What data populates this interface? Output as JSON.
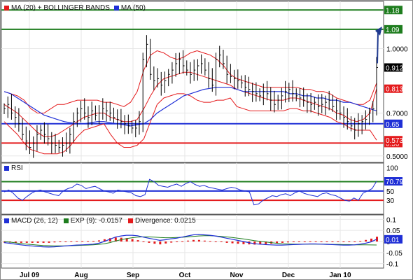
{
  "chart_data": {
    "type": "stock-chart",
    "colors": {
      "price": "#000000",
      "ma20_bands": "#e41a1c",
      "ma50": "#1f2fd6",
      "resistance": "#1e7d1e",
      "support_blue": "#1f2fd6",
      "support_red": "#e41a1c",
      "rsi": "#1f2fd6",
      "macd": "#1f2fd6",
      "signal": "#1e7d1e",
      "divergence": "#e41a1c",
      "arrow": "#1f3a8f"
    },
    "x_labels": [
      "Jul 09",
      "Aug",
      "Sep",
      "Oct",
      "Nov",
      "Dec",
      "Jan 10"
    ],
    "price_panel": {
      "legend": [
        {
          "label": "MA (20) + BOLLINGER BANDS",
          "color": "#e41a1c"
        },
        {
          "label": "MA (50)",
          "color": "#1f2fd6"
        }
      ],
      "yticks": [
        "1.0000",
        "0.7000",
        "0.5000"
      ],
      "ytick_values": [
        1.0,
        0.7,
        0.5
      ],
      "ylim": [
        0.47,
        1.22
      ],
      "levels": [
        {
          "label": "1.18",
          "value": 1.18,
          "color": "#1e7d1e"
        },
        {
          "label": "1.09",
          "value": 1.09,
          "color": "#1e7d1e"
        },
        {
          "label": "0.65",
          "value": 0.65,
          "color": "#1f2fd6"
        },
        {
          "label": "0.56",
          "value": 0.56,
          "color": "#e41a1c"
        }
      ],
      "tags": [
        {
          "label": "0.912",
          "value": 0.912,
          "color": "#000000"
        },
        {
          "label": "0.8133",
          "value": 0.8133,
          "color": "#e41a1c"
        },
        {
          "label": "0.5736",
          "value": 0.5736,
          "color": "#e41a1c"
        }
      ],
      "close": [
        0.72,
        0.74,
        0.7,
        0.68,
        0.65,
        0.6,
        0.57,
        0.54,
        0.56,
        0.6,
        0.62,
        0.6,
        0.58,
        0.56,
        0.55,
        0.54,
        0.55,
        0.56,
        0.6,
        0.66,
        0.7,
        0.72,
        0.7,
        0.68,
        0.71,
        0.69,
        0.7,
        0.72,
        0.71,
        0.7,
        0.68,
        0.67,
        0.66,
        0.65,
        0.64,
        0.63,
        0.63,
        0.66,
        0.95,
        1.02,
        0.88,
        0.85,
        0.86,
        0.83,
        0.85,
        0.88,
        0.9,
        0.93,
        0.95,
        0.92,
        0.9,
        0.88,
        0.9,
        0.92,
        0.93,
        0.9,
        0.86,
        0.83,
        0.95,
        0.97,
        0.93,
        0.88,
        0.87,
        0.86,
        0.85,
        0.84,
        0.82,
        0.81,
        0.8,
        0.79,
        0.78,
        0.8,
        0.79,
        0.76,
        0.74,
        0.76,
        0.78,
        0.8,
        0.81,
        0.79,
        0.78,
        0.77,
        0.76,
        0.75,
        0.74,
        0.75,
        0.73,
        0.74,
        0.75,
        0.76,
        0.73,
        0.71,
        0.7,
        0.68,
        0.66,
        0.64,
        0.62,
        0.65,
        0.66,
        0.67,
        0.7,
        0.72,
        0.912
      ],
      "ma20": [
        0.74,
        0.72,
        0.7,
        0.67,
        0.64,
        0.61,
        0.59,
        0.59,
        0.6,
        0.62,
        0.64,
        0.66,
        0.68,
        0.69,
        0.7,
        0.7,
        0.68,
        0.67,
        0.66,
        0.66,
        0.67,
        0.72,
        0.78,
        0.83,
        0.86,
        0.87,
        0.88,
        0.89,
        0.89,
        0.88,
        0.87,
        0.86,
        0.85,
        0.84,
        0.83,
        0.81,
        0.8,
        0.79,
        0.78,
        0.77,
        0.76,
        0.76,
        0.76,
        0.77,
        0.77,
        0.76,
        0.75,
        0.74,
        0.73,
        0.72,
        0.7,
        0.69,
        0.67,
        0.66,
        0.67,
        0.7,
        0.8133
      ],
      "bb_upper": [
        0.8,
        0.79,
        0.78,
        0.76,
        0.72,
        0.7,
        0.7,
        0.72,
        0.74,
        0.74,
        0.75,
        0.76,
        0.76,
        0.76,
        0.76,
        0.75,
        0.75,
        0.74,
        0.73,
        0.75,
        0.8,
        0.9,
        0.97,
        0.99,
        0.98,
        0.96,
        0.95,
        0.96,
        0.98,
        0.99,
        0.98,
        0.97,
        0.95,
        0.92,
        0.88,
        0.86,
        0.85,
        0.84,
        0.83,
        0.82,
        0.82,
        0.82,
        0.82,
        0.82,
        0.82,
        0.81,
        0.81,
        0.8,
        0.8,
        0.79,
        0.77,
        0.76,
        0.75,
        0.74,
        0.74,
        0.76,
        0.84
      ],
      "bb_lower": [
        0.66,
        0.63,
        0.6,
        0.56,
        0.53,
        0.52,
        0.51,
        0.51,
        0.51,
        0.52,
        0.55,
        0.59,
        0.62,
        0.63,
        0.64,
        0.65,
        0.6,
        0.56,
        0.54,
        0.54,
        0.55,
        0.58,
        0.66,
        0.74,
        0.77,
        0.78,
        0.79,
        0.79,
        0.78,
        0.76,
        0.75,
        0.75,
        0.76,
        0.76,
        0.77,
        0.73,
        0.72,
        0.71,
        0.71,
        0.71,
        0.71,
        0.71,
        0.71,
        0.72,
        0.72,
        0.71,
        0.71,
        0.7,
        0.69,
        0.68,
        0.66,
        0.65,
        0.63,
        0.62,
        0.62,
        0.62,
        0.5736
      ],
      "ma50": [
        0.8,
        0.79,
        0.77,
        0.75,
        0.73,
        0.71,
        0.69,
        0.68,
        0.67,
        0.66,
        0.655,
        0.65,
        0.65,
        0.655,
        0.66,
        0.66,
        0.655,
        0.65,
        0.645,
        0.64,
        0.645,
        0.65,
        0.67,
        0.7,
        0.72,
        0.74,
        0.76,
        0.78,
        0.79,
        0.8,
        0.81,
        0.815,
        0.82,
        0.82,
        0.82,
        0.81,
        0.8,
        0.8,
        0.8,
        0.8,
        0.8,
        0.8,
        0.8,
        0.79,
        0.79,
        0.78,
        0.78,
        0.77,
        0.77,
        0.76,
        0.76,
        0.75,
        0.75,
        0.74,
        0.73,
        0.72,
        0.71
      ],
      "arrow": {
        "from": 0.912,
        "to": 1.09
      }
    },
    "rsi_panel": {
      "title": "RSI",
      "yticks": [
        "100",
        "50",
        "30"
      ],
      "ytick_values": [
        100,
        50,
        30
      ],
      "ylim": [
        0,
        110
      ],
      "levels": [
        {
          "value": 70,
          "color": "#1e7d1e"
        },
        {
          "value": 50,
          "color": "#1f2fd6"
        },
        {
          "value": 30,
          "color": "#e41a1c"
        }
      ],
      "tag": {
        "label": "70.79",
        "value": 70.79
      },
      "values": [
        48,
        52,
        45,
        35,
        30,
        38,
        45,
        50,
        52,
        48,
        45,
        42,
        40,
        50,
        55,
        58,
        65,
        62,
        55,
        58,
        60,
        55,
        50,
        48,
        45,
        52,
        50,
        48,
        46,
        40,
        38,
        42,
        75,
        70,
        62,
        60,
        58,
        62,
        65,
        60,
        66,
        70,
        64,
        60,
        62,
        58,
        56,
        54,
        52,
        55,
        58,
        56,
        52,
        50,
        48,
        20,
        22,
        30,
        35,
        40,
        38,
        42,
        44,
        40,
        46,
        50,
        45,
        42,
        40,
        38,
        44,
        46,
        42,
        40,
        35,
        30,
        28,
        35,
        30,
        45,
        50,
        55,
        70.79
      ]
    },
    "macd_panel": {
      "legend": [
        {
          "label": "MACD (26, 12)",
          "color": "#1f2fd6"
        },
        {
          "label": "EXP (9): -0.0157",
          "color": "#1e7d1e"
        },
        {
          "label": "Divergence: 0.0215",
          "color": "#e41a1c"
        }
      ],
      "yticks": [
        "0.1",
        "0.05",
        "0",
        "-0.05",
        "-0.1"
      ],
      "ytick_values": [
        0.1,
        0.05,
        0,
        -0.05,
        -0.1
      ],
      "ylim": [
        -0.12,
        0.12
      ],
      "tag": {
        "label": "0.01",
        "value": 0.01
      },
      "macd": [
        -0.005,
        -0.008,
        -0.012,
        -0.015,
        -0.018,
        -0.02,
        -0.022,
        -0.024,
        -0.025,
        -0.024,
        -0.022,
        -0.02,
        -0.018,
        -0.016,
        -0.015,
        -0.014,
        -0.012,
        -0.008,
        0.0,
        0.01,
        0.02,
        0.025,
        0.028,
        0.028,
        0.026,
        0.02,
        0.015,
        0.01,
        0.005,
        0.008,
        0.012,
        0.015,
        0.02,
        0.025,
        0.03,
        0.032,
        0.03,
        0.028,
        0.025,
        0.02,
        0.015,
        0.01,
        0.005,
        0.0,
        -0.005,
        -0.01,
        -0.012,
        -0.014,
        -0.015,
        -0.016,
        -0.016,
        -0.015,
        -0.014,
        -0.013,
        -0.012,
        -0.011,
        -0.011,
        -0.012,
        -0.013,
        -0.014,
        -0.015,
        -0.016,
        -0.016,
        -0.015,
        -0.012,
        -0.008,
        -0.002,
        0.01
      ],
      "signal": [
        0.0,
        -0.003,
        -0.006,
        -0.009,
        -0.012,
        -0.014,
        -0.016,
        -0.018,
        -0.019,
        -0.02,
        -0.02,
        -0.02,
        -0.019,
        -0.018,
        -0.017,
        -0.016,
        -0.015,
        -0.013,
        -0.01,
        -0.005,
        0.002,
        0.008,
        0.013,
        0.017,
        0.02,
        0.021,
        0.021,
        0.02,
        0.018,
        0.017,
        0.017,
        0.018,
        0.019,
        0.021,
        0.023,
        0.025,
        0.026,
        0.026,
        0.025,
        0.023,
        0.021,
        0.018,
        0.015,
        0.012,
        0.008,
        0.004,
        0.001,
        -0.002,
        -0.005,
        -0.008,
        -0.01,
        -0.011,
        -0.012,
        -0.012,
        -0.012,
        -0.012,
        -0.012,
        -0.012,
        -0.012,
        -0.013,
        -0.013,
        -0.014,
        -0.014,
        -0.015,
        -0.015,
        -0.015,
        -0.0155,
        -0.0157
      ],
      "divergence": [
        -0.005,
        -0.005,
        -0.006,
        -0.006,
        -0.006,
        -0.006,
        -0.006,
        -0.006,
        -0.006,
        -0.004,
        -0.002,
        0.0,
        0.001,
        0.002,
        0.002,
        0.002,
        0.003,
        0.005,
        0.01,
        0.015,
        0.018,
        0.017,
        0.015,
        0.011,
        0.006,
        -0.001,
        -0.006,
        -0.01,
        -0.013,
        -0.009,
        -0.005,
        -0.003,
        0.001,
        0.004,
        0.007,
        0.007,
        0.004,
        0.002,
        0.0,
        -0.003,
        -0.006,
        -0.008,
        -0.01,
        -0.012,
        -0.013,
        -0.014,
        -0.013,
        -0.012,
        -0.01,
        -0.008,
        -0.006,
        -0.004,
        -0.002,
        -0.001,
        0.0,
        0.001,
        0.001,
        0.0,
        -0.001,
        -0.001,
        -0.002,
        -0.002,
        -0.002,
        0.0,
        0.003,
        0.007,
        0.013,
        0.0215
      ]
    }
  }
}
